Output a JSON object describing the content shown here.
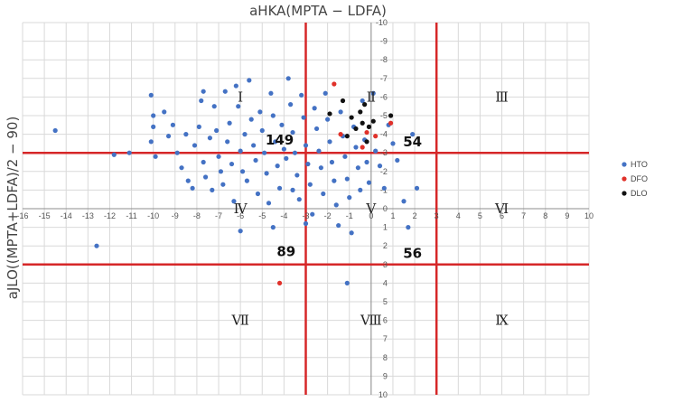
{
  "chart_data": {
    "type": "scatter",
    "title": "aHKA(MPTA − LDFA)",
    "ylabel": "aJLO((MPTA+LDFA)/2 − 90)",
    "xlim": [
      -16,
      10
    ],
    "ylim": [
      -10,
      10
    ],
    "y_inverted": true,
    "grid": true,
    "legend_position": "right",
    "x_ticks": [
      "-16",
      "-15",
      "-14",
      "-13",
      "-12",
      "-11",
      "-10",
      "-9",
      "-8",
      "-7",
      "-6",
      "-5",
      "-4",
      "-3",
      "-2",
      "-1",
      "0",
      "1",
      "2",
      "3",
      "4",
      "5",
      "6",
      "7",
      "8",
      "9",
      "10"
    ],
    "y_ticks": [
      "-10",
      "-9",
      "-8",
      "-7",
      "-6",
      "-5",
      "-4",
      "-3",
      "-2",
      "-1",
      "0",
      "1",
      "2",
      "3",
      "4",
      "5",
      "6",
      "7",
      "8",
      "9",
      "10"
    ],
    "reference_lines": {
      "vertical": [
        -3,
        3
      ],
      "horizontal": [
        -3,
        3
      ]
    },
    "series": [
      {
        "name": "HTO",
        "color": "#4472C4",
        "points": [
          [
            -14.5,
            -4.2
          ],
          [
            -12.6,
            2.0
          ],
          [
            -11.8,
            -2.9
          ],
          [
            -11.1,
            -3.0
          ],
          [
            -10.1,
            -6.1
          ],
          [
            -10.0,
            -5.0
          ],
          [
            -10.0,
            -4.4
          ],
          [
            -10.1,
            -3.6
          ],
          [
            -9.9,
            -2.8
          ],
          [
            -9.5,
            -5.2
          ],
          [
            -9.3,
            -3.9
          ],
          [
            -9.1,
            -4.5
          ],
          [
            -8.9,
            -3.0
          ],
          [
            -8.7,
            -2.2
          ],
          [
            -8.5,
            -4.0
          ],
          [
            -8.4,
            -1.5
          ],
          [
            -8.2,
            -1.1
          ],
          [
            -8.1,
            -3.4
          ],
          [
            -7.9,
            -4.4
          ],
          [
            -7.8,
            -5.8
          ],
          [
            -7.7,
            -2.5
          ],
          [
            -7.6,
            -1.7
          ],
          [
            -7.4,
            -3.8
          ],
          [
            -7.3,
            -1.0
          ],
          [
            -7.2,
            -5.5
          ],
          [
            -7.1,
            -4.2
          ],
          [
            -7.0,
            -2.8
          ],
          [
            -6.9,
            -2.0
          ],
          [
            -6.8,
            -1.3
          ],
          [
            -6.7,
            -6.3
          ],
          [
            -6.6,
            -3.6
          ],
          [
            -6.5,
            -4.6
          ],
          [
            -6.4,
            -2.4
          ],
          [
            -6.3,
            -0.4
          ],
          [
            -6.2,
            -6.6
          ],
          [
            -6.1,
            -5.5
          ],
          [
            -6.0,
            -3.1
          ],
          [
            -5.9,
            -2.0
          ],
          [
            -5.8,
            -4.0
          ],
          [
            -5.7,
            -1.5
          ],
          [
            -5.6,
            -6.9
          ],
          [
            -5.5,
            -4.8
          ],
          [
            -5.4,
            -3.4
          ],
          [
            -5.3,
            -2.6
          ],
          [
            -5.2,
            -0.8
          ],
          [
            -5.1,
            -5.2
          ],
          [
            -5.0,
            -4.2
          ],
          [
            -4.9,
            -3.0
          ],
          [
            -4.8,
            -1.9
          ],
          [
            -4.7,
            -0.3
          ],
          [
            -4.6,
            -6.2
          ],
          [
            -4.5,
            -5.0
          ],
          [
            -4.4,
            -3.6
          ],
          [
            -4.3,
            -2.3
          ],
          [
            -4.2,
            -1.1
          ],
          [
            -4.1,
            -4.5
          ],
          [
            -4.0,
            -3.2
          ],
          [
            -3.9,
            -2.7
          ],
          [
            -3.8,
            -7.0
          ],
          [
            -3.7,
            -5.6
          ],
          [
            -3.6,
            -4.1
          ],
          [
            -3.5,
            -3.0
          ],
          [
            -3.4,
            -1.8
          ],
          [
            -3.3,
            -0.5
          ],
          [
            -3.2,
            -6.1
          ],
          [
            -3.1,
            -4.9
          ],
          [
            -3.0,
            -3.4
          ],
          [
            -2.9,
            -2.4
          ],
          [
            -2.8,
            -1.3
          ],
          [
            -2.7,
            0.3
          ],
          [
            -2.6,
            -5.4
          ],
          [
            -2.5,
            -4.3
          ],
          [
            -2.4,
            -3.1
          ],
          [
            -2.3,
            -2.2
          ],
          [
            -2.2,
            -0.8
          ],
          [
            -2.1,
            -6.2
          ],
          [
            -2.0,
            -4.8
          ],
          [
            -1.9,
            -3.6
          ],
          [
            -1.8,
            -2.5
          ],
          [
            -1.7,
            -1.5
          ],
          [
            -1.6,
            -0.2
          ],
          [
            -1.5,
            0.9
          ],
          [
            -1.4,
            -5.2
          ],
          [
            -1.3,
            -3.9
          ],
          [
            -1.2,
            -2.8
          ],
          [
            -1.1,
            -1.6
          ],
          [
            -1.0,
            -0.6
          ],
          [
            -0.9,
            1.3
          ],
          [
            -0.8,
            -4.4
          ],
          [
            -0.7,
            -3.3
          ],
          [
            -0.6,
            -2.2
          ],
          [
            -0.5,
            -1.0
          ],
          [
            -0.4,
            -5.8
          ],
          [
            -0.3,
            -3.7
          ],
          [
            -0.2,
            -2.5
          ],
          [
            -0.1,
            -1.4
          ],
          [
            0.1,
            -6.2
          ],
          [
            0.2,
            -3.1
          ],
          [
            0.4,
            -2.3
          ],
          [
            0.6,
            -1.1
          ],
          [
            0.8,
            -4.5
          ],
          [
            1.0,
            -3.5
          ],
          [
            1.2,
            -2.6
          ],
          [
            1.5,
            -0.4
          ],
          [
            1.7,
            1.0
          ],
          [
            1.9,
            -4.0
          ],
          [
            2.1,
            -1.1
          ],
          [
            -1.1,
            4.0
          ],
          [
            -7.7,
            -6.3
          ],
          [
            -3.6,
            -1.0
          ],
          [
            -3.0,
            0.8
          ],
          [
            -4.5,
            1.0
          ],
          [
            -6.0,
            1.2
          ]
        ]
      },
      {
        "name": "DFO",
        "color": "#E0312A",
        "points": [
          [
            -1.7,
            -6.7
          ],
          [
            -1.4,
            -4.0
          ],
          [
            -0.4,
            -3.3
          ],
          [
            -0.2,
            -4.1
          ],
          [
            0.2,
            -3.9
          ],
          [
            0.9,
            -4.6
          ],
          [
            -4.2,
            4.0
          ]
        ]
      },
      {
        "name": "DLO",
        "color": "#111111",
        "points": [
          [
            -1.9,
            -5.1
          ],
          [
            -1.3,
            -5.8
          ],
          [
            -0.9,
            -4.9
          ],
          [
            -0.7,
            -4.3
          ],
          [
            -0.5,
            -5.2
          ],
          [
            -0.3,
            -5.6
          ],
          [
            -0.2,
            -3.6
          ],
          [
            -0.1,
            -4.4
          ],
          [
            0.1,
            -4.7
          ],
          [
            -1.1,
            -3.9
          ],
          [
            0.9,
            -5.0
          ],
          [
            -0.4,
            -4.6
          ]
        ]
      }
    ],
    "quadrant_labels": [
      {
        "text": "Ⅰ",
        "x": -6,
        "y": -6
      },
      {
        "text": "Ⅱ",
        "x": 0,
        "y": -6
      },
      {
        "text": "Ⅲ",
        "x": 6,
        "y": -6
      },
      {
        "text": "Ⅳ",
        "x": -6,
        "y": 0
      },
      {
        "text": "Ⅴ",
        "x": 0,
        "y": 0
      },
      {
        "text": "Ⅵ",
        "x": 6,
        "y": 0
      },
      {
        "text": "Ⅶ",
        "x": -6,
        "y": 6
      },
      {
        "text": "Ⅷ",
        "x": 0,
        "y": 6
      },
      {
        "text": "Ⅸ",
        "x": 6,
        "y": 6
      }
    ],
    "count_labels": [
      {
        "text": "149",
        "x": -4.2,
        "y": -3.7
      },
      {
        "text": "54",
        "x": 1.9,
        "y": -3.6
      },
      {
        "text": "89",
        "x": -3.9,
        "y": 2.3
      },
      {
        "text": "56",
        "x": 1.9,
        "y": 2.4
      }
    ]
  }
}
